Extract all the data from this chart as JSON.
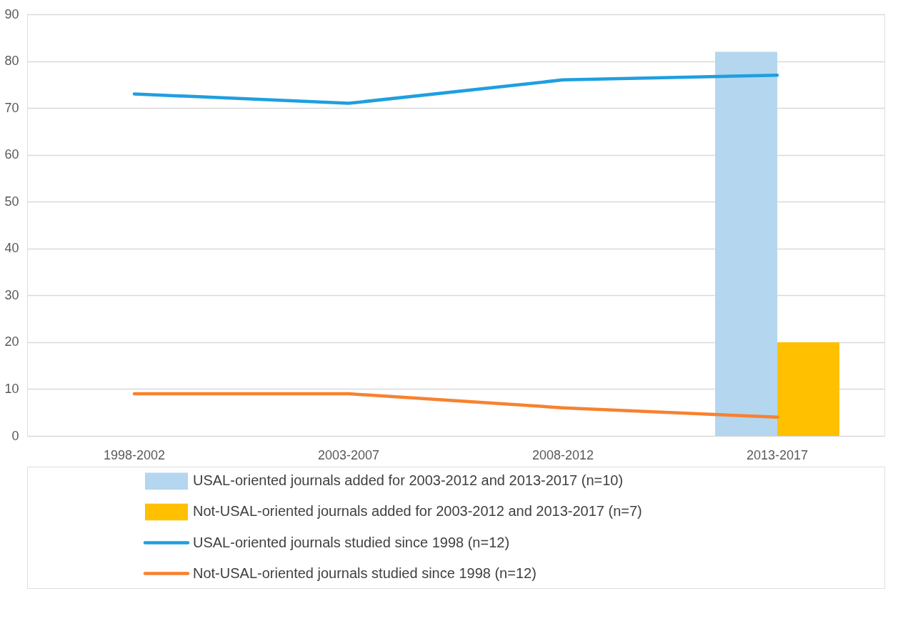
{
  "chart_data": {
    "type": "line",
    "categories": [
      "1998-2002",
      "2003-2007",
      "2008-2012",
      "2013-2017"
    ],
    "series": [
      {
        "name": "USAL-oriented journals added for 2003-2012 and 2013-2017 (n=10)",
        "type": "bar",
        "color": "#b4d6ef",
        "values": [
          null,
          null,
          null,
          82
        ]
      },
      {
        "name": "Not-USAL-oriented journals added for 2003-2012 and 2013-2017  (n=7)",
        "type": "bar",
        "color": "#ffc000",
        "values": [
          null,
          null,
          null,
          20
        ]
      },
      {
        "name": "USAL-oriented journals studied since 1998  (n=12)",
        "color": "#1f9fdf",
        "values": [
          73,
          71,
          76,
          77
        ]
      },
      {
        "name": "Not-USAL-oriented journals studied since 1998  (n=12)",
        "color": "#f8812f",
        "values": [
          9,
          9,
          6,
          4
        ]
      }
    ],
    "ylim": [
      0,
      90
    ],
    "yticks": [
      0,
      10,
      20,
      30,
      40,
      50,
      60,
      70,
      80,
      90
    ],
    "grid": "y",
    "legend": "bottom",
    "marker": "none",
    "line_style": "solid"
  }
}
